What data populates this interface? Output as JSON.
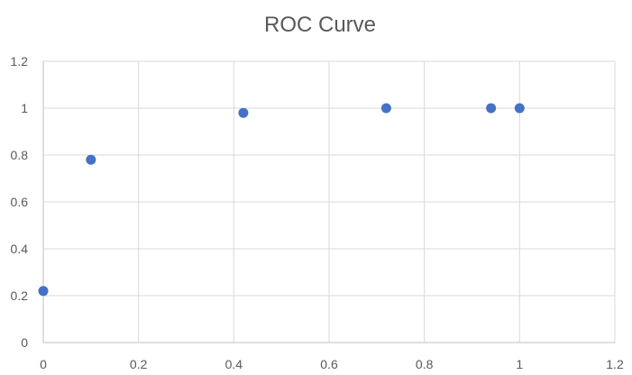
{
  "chart_data": {
    "type": "scatter",
    "title": "ROC Curve",
    "xlabel": "",
    "ylabel": "",
    "xlim": [
      0,
      1.2
    ],
    "ylim": [
      0,
      1.2
    ],
    "x_ticks": [
      "0",
      "0.2",
      "0.4",
      "0.6",
      "0.8",
      "1",
      "1.2"
    ],
    "y_ticks": [
      "0",
      "0.2",
      "0.4",
      "0.6",
      "0.8",
      "1",
      "1.2"
    ],
    "grid": true,
    "legend": "none",
    "marker_color": "#4472c4",
    "series": [
      {
        "points": [
          {
            "x": 0,
            "y": 0.22
          },
          {
            "x": 0.1,
            "y": 0.78
          },
          {
            "x": 0.42,
            "y": 0.98
          },
          {
            "x": 0.72,
            "y": 1.0
          },
          {
            "x": 0.94,
            "y": 1.0
          },
          {
            "x": 1.0,
            "y": 1.0
          }
        ]
      }
    ]
  }
}
